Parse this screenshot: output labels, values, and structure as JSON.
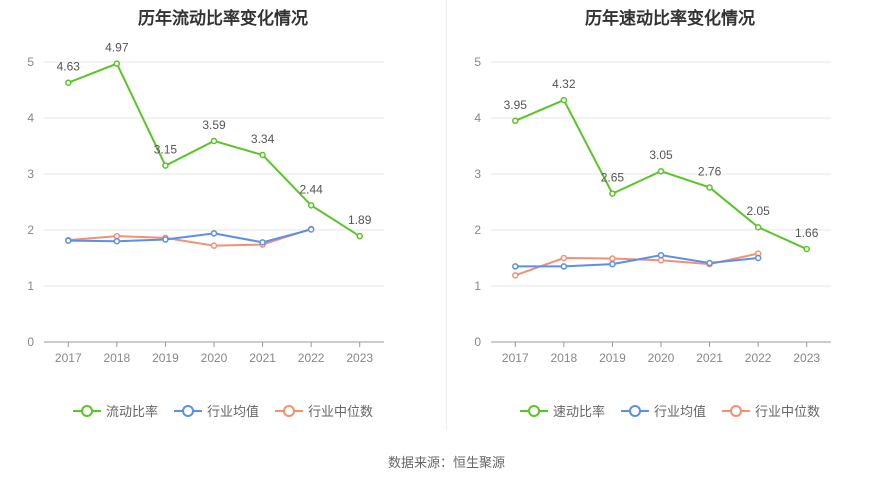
{
  "source_text": "数据来源：恒生聚源",
  "chart_data": [
    {
      "type": "line",
      "title": "历年流动比率变化情况",
      "categories": [
        "2017",
        "2018",
        "2019",
        "2020",
        "2021",
        "2022",
        "2023"
      ],
      "ylim": [
        0,
        5
      ],
      "yticks": [
        0,
        1,
        2,
        3,
        4,
        5
      ],
      "grid": true,
      "legend_position": "bottom",
      "series": [
        {
          "name": "流动比率",
          "color": "#5ac429",
          "values": [
            4.63,
            4.97,
            3.15,
            3.59,
            3.34,
            2.44,
            1.89
          ],
          "labels": [
            "4.63",
            "4.97",
            "3.15",
            "3.59",
            "3.34",
            "2.44",
            "1.89"
          ]
        },
        {
          "name": "行业均值",
          "color": "#5b8fe8",
          "values": [
            1.81,
            1.8,
            1.83,
            1.94,
            1.78,
            2.01,
            null
          ]
        },
        {
          "name": "行业中位数",
          "color": "#f39074",
          "values": [
            1.82,
            1.89,
            1.86,
            1.72,
            1.74,
            2.02,
            null
          ]
        }
      ]
    },
    {
      "type": "line",
      "title": "历年速动比率变化情况",
      "categories": [
        "2017",
        "2018",
        "2019",
        "2020",
        "2021",
        "2022",
        "2023"
      ],
      "ylim": [
        0,
        5
      ],
      "yticks": [
        0,
        1,
        2,
        3,
        4,
        5
      ],
      "grid": true,
      "legend_position": "bottom",
      "series": [
        {
          "name": "速动比率",
          "color": "#5ac429",
          "values": [
            3.95,
            4.32,
            2.65,
            3.05,
            2.76,
            2.05,
            1.66
          ],
          "labels": [
            "3.95",
            "4.32",
            "2.65",
            "3.05",
            "2.76",
            "2.05",
            "1.66"
          ]
        },
        {
          "name": "行业均值",
          "color": "#5b8fe8",
          "values": [
            1.35,
            1.35,
            1.39,
            1.55,
            1.41,
            1.5,
            null
          ]
        },
        {
          "name": "行业中位数",
          "color": "#f39074",
          "values": [
            1.19,
            1.5,
            1.49,
            1.46,
            1.39,
            1.58,
            null
          ]
        }
      ]
    }
  ]
}
